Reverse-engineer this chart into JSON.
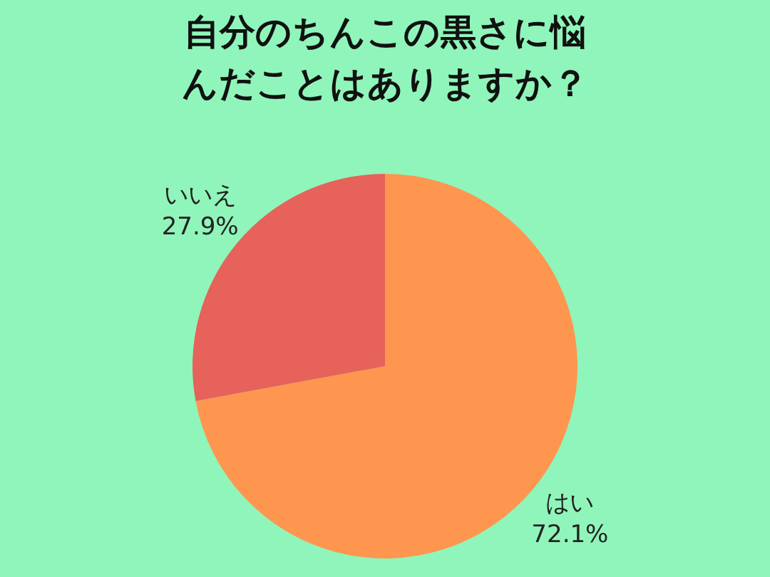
{
  "chart_data": {
    "type": "pie",
    "title": "自分のちんこの黒さに悩んだことはありますか？",
    "categories": [
      "はい",
      "いいえ"
    ],
    "values": [
      72.1,
      27.9
    ],
    "value_labels": [
      "72.1%",
      "27.9%"
    ],
    "colors": [
      "#fe9650",
      "#e6625a"
    ],
    "legend": false
  }
}
